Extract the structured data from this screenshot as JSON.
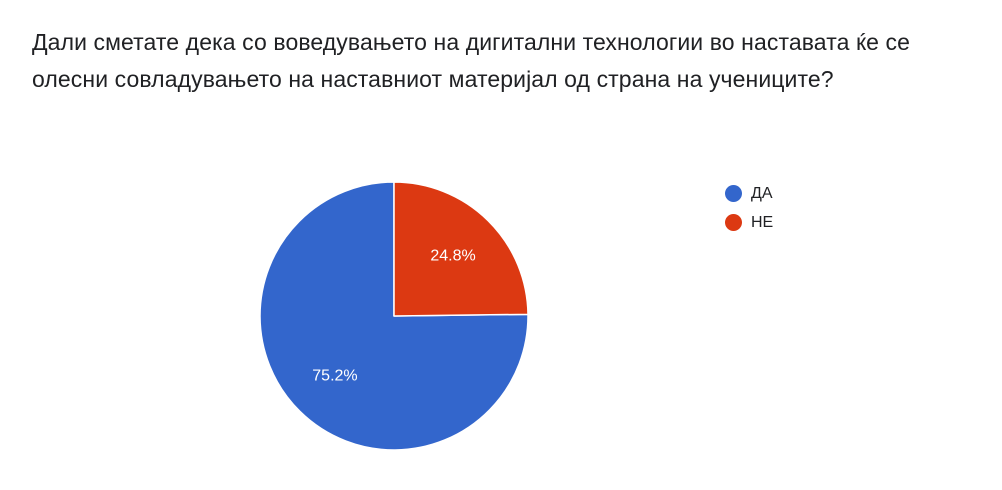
{
  "question": {
    "title": "Дали сметате дека со воведувањето на дигитални технологии во наставата ќе се олесни совладувањето на наставниот материјал од страна на учениците?"
  },
  "chart_data": {
    "type": "pie",
    "categories": [
      "ДА",
      "НЕ"
    ],
    "values": [
      75.2,
      24.8
    ],
    "labels": [
      "75.2%",
      "24.8%"
    ],
    "colors": [
      "#3366cc",
      "#dc3912"
    ],
    "legend_position": "right"
  },
  "legend": {
    "items": [
      {
        "label": "ДА",
        "color": "#3366cc"
      },
      {
        "label": "НЕ",
        "color": "#dc3912"
      }
    ]
  }
}
